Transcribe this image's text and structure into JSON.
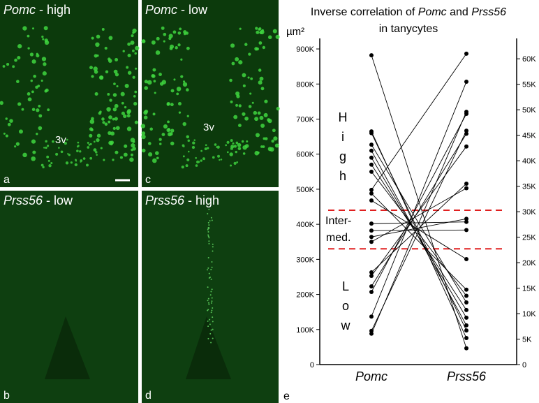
{
  "panels": [
    {
      "gene": "Pomc",
      "level": " - high",
      "letter": "a",
      "ventricle": "3v"
    },
    {
      "gene": "Pomc",
      "level": " - low",
      "letter": "c",
      "ventricle": "3v"
    },
    {
      "gene": "Prss56",
      "level": " - low",
      "letter": "b"
    },
    {
      "gene": "Prss56",
      "level": " - high",
      "letter": "d"
    }
  ],
  "chart_data": {
    "type": "slope",
    "title": [
      "Inverse correlation of ",
      "Pomc",
      " and ",
      "Prss56",
      "in tanycytes"
    ],
    "ylabel": "µm²",
    "panel_letter": "e",
    "series": [
      {
        "name": "Pomc",
        "axis": "y",
        "color": "#000000",
        "values": [
          882000,
          665000,
          660000,
          627000,
          610000,
          590000,
          570000,
          550000,
          498000,
          488000,
          468000,
          402000,
          382000,
          364000,
          350000,
          263000,
          253000,
          223000,
          207000,
          137000,
          96000,
          88000
        ]
      },
      {
        "name": "Prss56",
        "axis": "y2",
        "color": "#000000",
        "values": [
          3200,
          5200,
          6700,
          12200,
          7700,
          9200,
          10700,
          13500,
          61000,
          14700,
          20700,
          28000,
          26400,
          28600,
          34600,
          35500,
          42800,
          45300,
          49200,
          55500,
          45900,
          49600
        ]
      }
    ],
    "ylim": [
      0,
      930000
    ],
    "yticks": [
      0,
      {
        "value": 100000,
        "label": "100K"
      },
      {
        "value": 200000,
        "label": "200K"
      },
      {
        "value": 300000,
        "label": "300K"
      },
      {
        "value": 400000,
        "label": "400K"
      },
      {
        "value": 500000,
        "label": "500K"
      },
      {
        "value": 600000,
        "label": "600K"
      },
      {
        "value": 700000,
        "label": "700K"
      },
      {
        "value": 800000,
        "label": "800K"
      },
      {
        "value": 900000,
        "label": "900K"
      }
    ],
    "y2lim": [
      0,
      64000
    ],
    "y2ticks": [
      0,
      {
        "value": 5000,
        "label": "5K"
      },
      {
        "value": 10000,
        "label": "10K"
      },
      {
        "value": 15000,
        "label": "15K"
      },
      {
        "value": 20000,
        "label": "20K"
      },
      {
        "value": 25000,
        "label": "25K"
      },
      {
        "value": 30000,
        "label": "30K"
      },
      {
        "value": 35000,
        "label": "35K"
      },
      {
        "value": 40000,
        "label": "40K"
      },
      {
        "value": 45000,
        "label": "45K"
      },
      {
        "value": 50000,
        "label": "50K"
      },
      {
        "value": 55000,
        "label": "55K"
      },
      {
        "value": 60000,
        "label": "60K"
      }
    ],
    "thresholds": [
      440000,
      330000
    ],
    "threshold_color": "#e02020",
    "annotations": {
      "high": "High",
      "intermediate": [
        "Inter-",
        "med."
      ],
      "low": "Low"
    }
  }
}
